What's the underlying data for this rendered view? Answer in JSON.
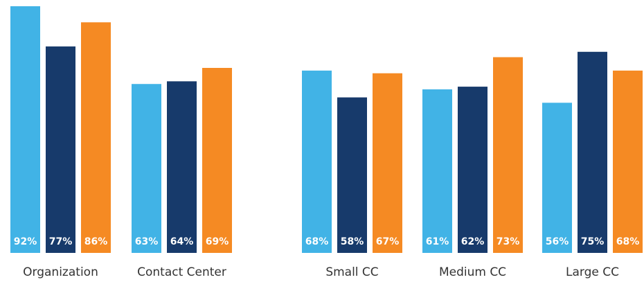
{
  "chart_data": {
    "type": "bar",
    "categories": [
      "Organization",
      "Contact Center",
      "Small CC",
      "Medium CC",
      "Large CC"
    ],
    "series": [
      {
        "color": "#41b3e6",
        "values": [
          92,
          63,
          68,
          61,
          56
        ],
        "value_labels": [
          "92%",
          "63%",
          "68%",
          "61%",
          "56%"
        ]
      },
      {
        "color": "#173a6b",
        "values": [
          77,
          64,
          58,
          62,
          75
        ],
        "value_labels": [
          "77%",
          "64%",
          "58%",
          "62%",
          "75%"
        ]
      },
      {
        "color": "#f58a23",
        "values": [
          86,
          69,
          67,
          73,
          68
        ],
        "value_labels": [
          "86%",
          "69%",
          "67%",
          "73%",
          "68%"
        ]
      }
    ]
  }
}
